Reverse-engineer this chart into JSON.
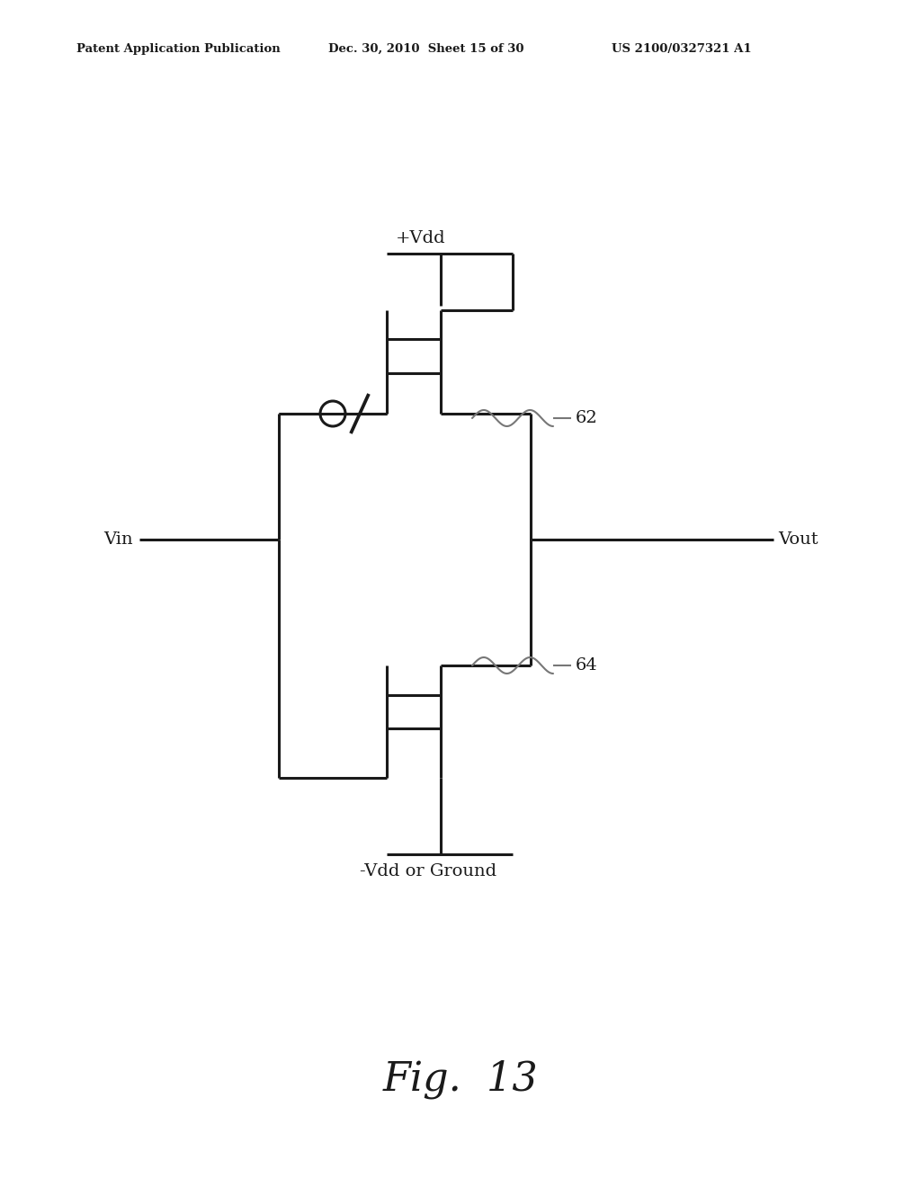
{
  "bg_color": "#ffffff",
  "line_color": "#1a1a1a",
  "line_width": 2.2,
  "header_text": "Patent Application Publication",
  "header_date": "Dec. 30, 2010  Sheet 15 of 30",
  "header_patent": "US 2100/0327321 A1",
  "fig_label": "Fig.  13",
  "label_62": "62",
  "label_64": "64",
  "label_vdd": "+Vdd",
  "label_neg_vdd": "-Vdd or Ground",
  "label_vin": "Vin",
  "label_vout": "Vout"
}
